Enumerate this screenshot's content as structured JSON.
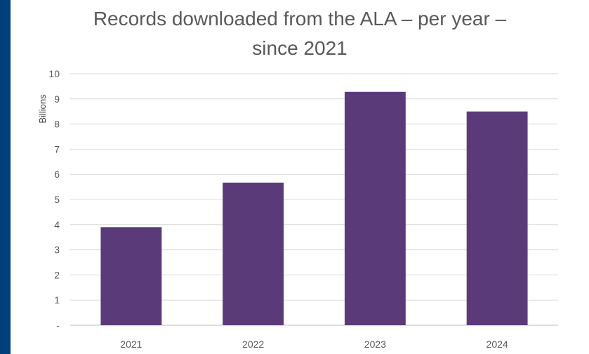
{
  "chart_data": {
    "type": "bar",
    "title_lines": [
      "Records downloaded from the ALA – per year –",
      "since 2021"
    ],
    "ylabel": "Billions",
    "xlabel": "",
    "categories": [
      "2021",
      "2022",
      "2023",
      "2024"
    ],
    "values": [
      3.9,
      5.67,
      9.28,
      8.5
    ],
    "ylim": [
      0,
      10
    ],
    "yticks": [
      0,
      1,
      2,
      3,
      4,
      5,
      6,
      7,
      8,
      9,
      10
    ],
    "ytick_labels": [
      "-",
      "1",
      "2",
      "3",
      "4",
      "5",
      "6",
      "7",
      "8",
      "9",
      "10"
    ],
    "grid": true,
    "legend": "none",
    "bar_color": "#5b3a7a"
  }
}
